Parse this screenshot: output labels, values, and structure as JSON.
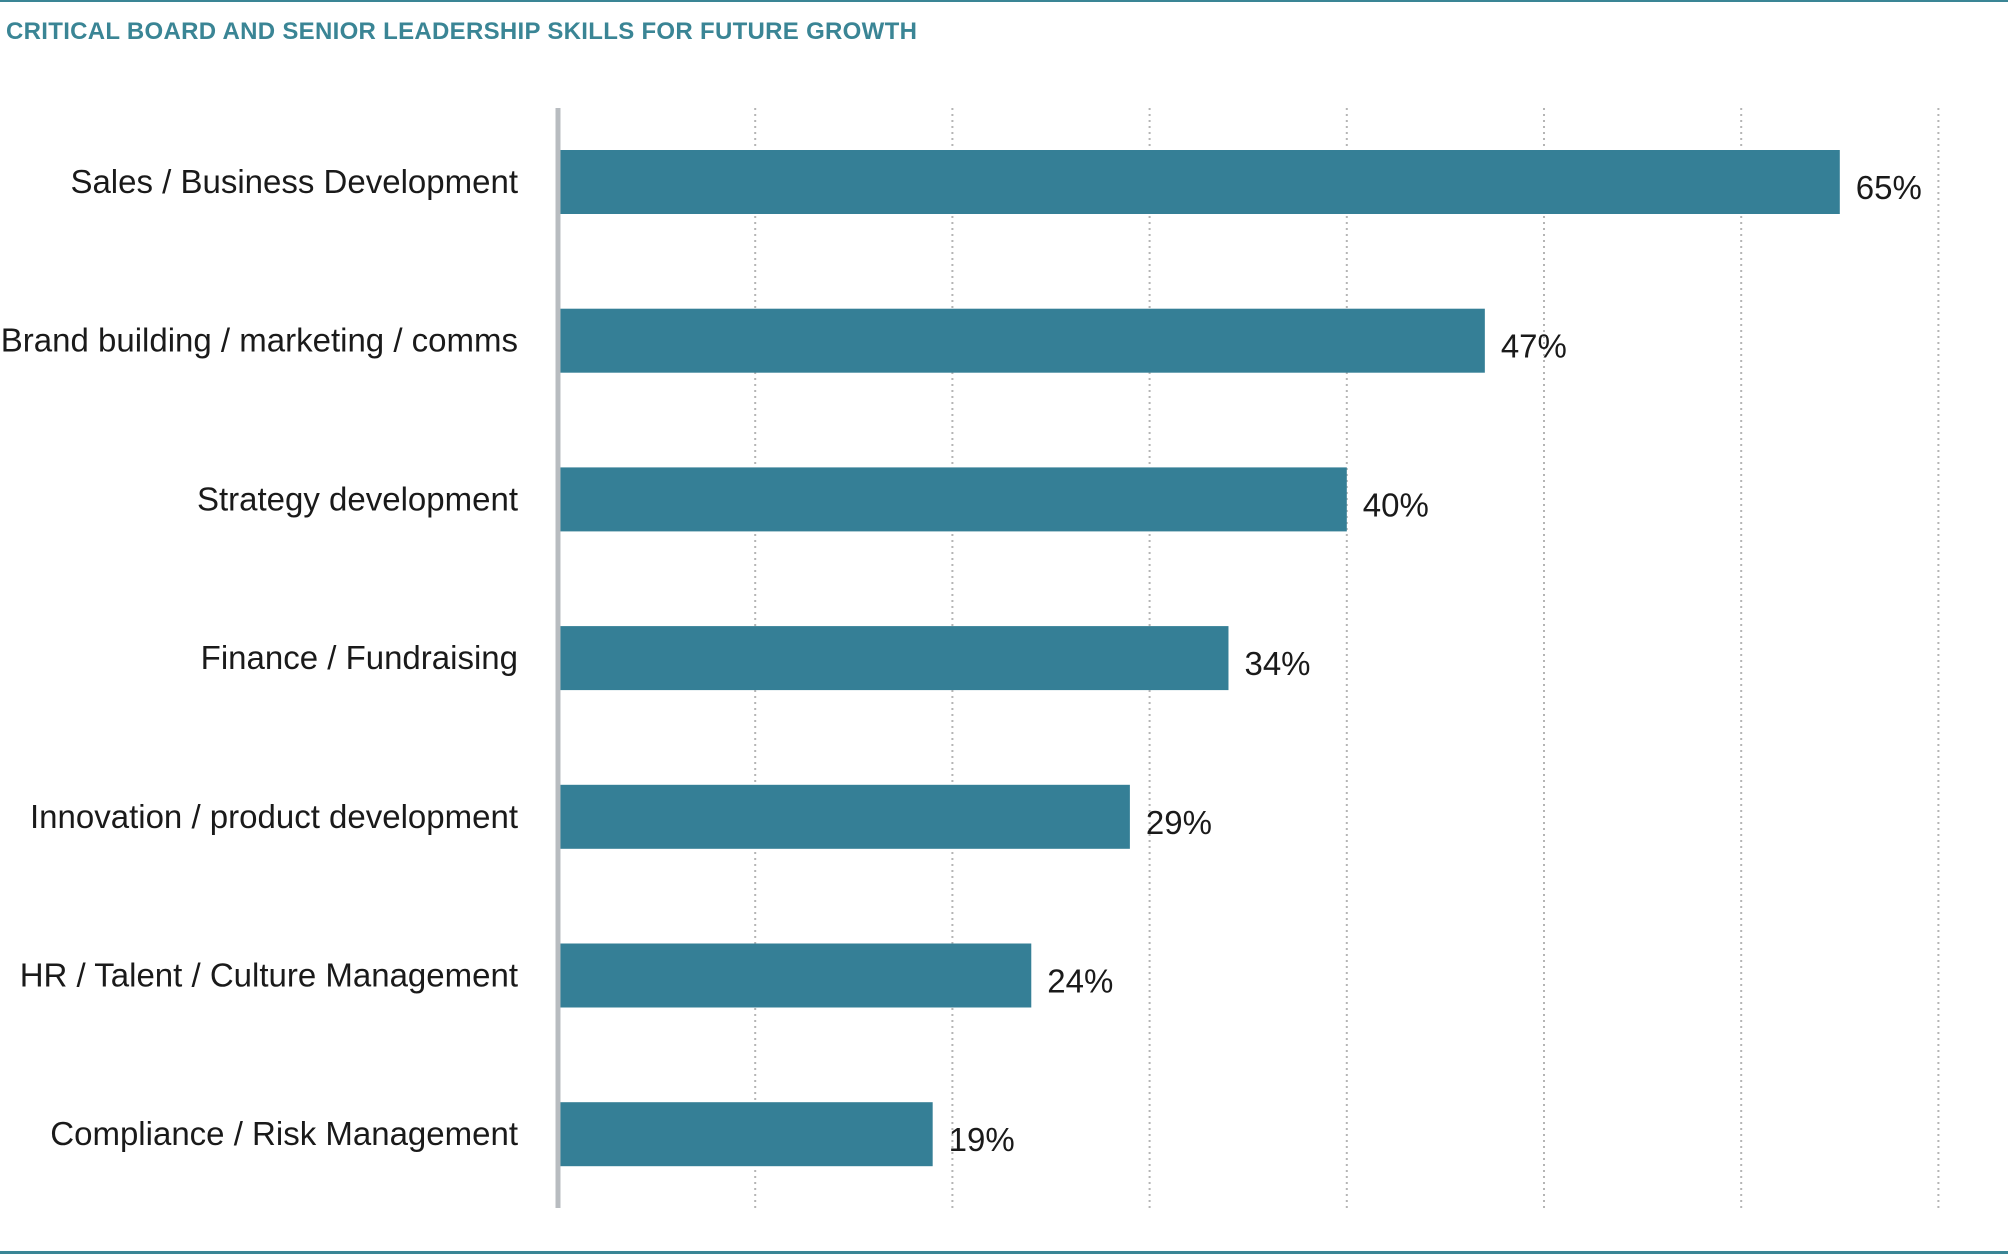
{
  "chart_data": {
    "type": "bar",
    "orientation": "horizontal",
    "title": "CRITICAL BOARD AND SENIOR LEADERSHIP SKILLS FOR FUTURE GROWTH",
    "categories": [
      "Sales / Business Development",
      "Brand building / marketing / comms",
      "Strategy development",
      "Finance / Fundraising",
      "Innovation / product development",
      "HR / Talent / Culture Management",
      "Compliance / Risk Management"
    ],
    "values": [
      65,
      47,
      40,
      34,
      29,
      24,
      19
    ],
    "value_labels": [
      "65%",
      "47%",
      "40%",
      "34%",
      "29%",
      "24%",
      "19%"
    ],
    "xlim": [
      0,
      70
    ],
    "x_gridlines": [
      10,
      20,
      30,
      40,
      50,
      60,
      70
    ],
    "grid": true,
    "grid_style": "dotted",
    "colors": {
      "bar": "#357f96",
      "title": "#3a8595",
      "axis": "#b8bcc0",
      "grid": "#b5b5b5"
    }
  }
}
